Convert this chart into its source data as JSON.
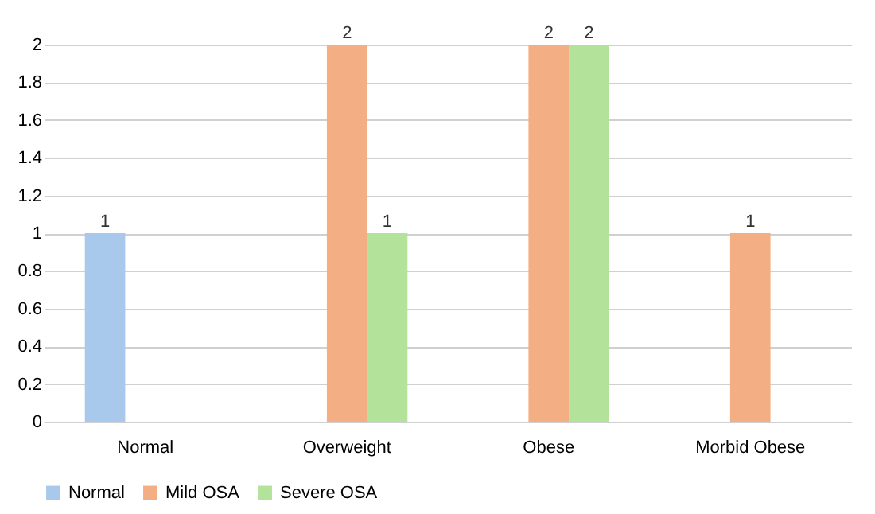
{
  "chart_data": {
    "type": "bar",
    "categories": [
      "Normal",
      "Overweight",
      "Obese",
      "Morbid Obese"
    ],
    "series": [
      {
        "name": "Normal",
        "color": "#a9c9ec",
        "values": [
          1,
          null,
          null,
          null
        ]
      },
      {
        "name": "Mild OSA",
        "color": "#f4ae84",
        "values": [
          null,
          2,
          2,
          1
        ]
      },
      {
        "name": "Severe OSA",
        "color": "#b3e29b",
        "values": [
          null,
          1,
          2,
          null
        ]
      }
    ],
    "ylim": [
      0,
      2
    ],
    "yticks": [
      0,
      0.2,
      0.4,
      0.6,
      0.8,
      1,
      1.2,
      1.4,
      1.6,
      1.8,
      2
    ],
    "grid": "y",
    "legend": "bottom",
    "data_labels": true
  }
}
